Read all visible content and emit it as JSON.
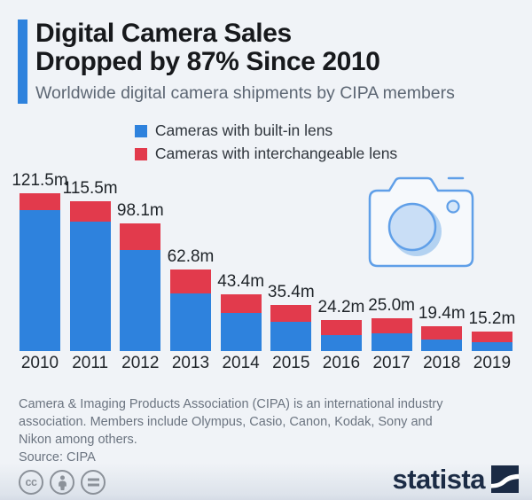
{
  "header": {
    "title_lines": [
      "Digital Camera Sales",
      "Dropped by 87% Since 2010"
    ],
    "subtitle": "Worldwide digital camera shipments by CIPA members",
    "accent_color": "#2e82dd"
  },
  "chart_data": {
    "type": "bar",
    "stacked": true,
    "title": "Digital Camera Sales Dropped by 87% Since 2010",
    "subtitle": "Worldwide digital camera shipments by CIPA members",
    "unit": "million units",
    "grid": false,
    "legend_position": "top-center",
    "ylim": [
      0,
      125
    ],
    "categories": [
      "2010",
      "2011",
      "2012",
      "2013",
      "2014",
      "2015",
      "2016",
      "2017",
      "2018",
      "2019"
    ],
    "totals": [
      121.5,
      115.5,
      98.1,
      62.8,
      43.4,
      35.4,
      24.2,
      25.0,
      19.4,
      15.2
    ],
    "total_labels": [
      "121.5m",
      "115.5m",
      "98.1m",
      "62.8m",
      "43.4m",
      "35.4m",
      "24.2m",
      "25.0m",
      "19.4m",
      "15.2m"
    ],
    "series": [
      {
        "name": "Cameras with built-in lens",
        "color": "#2e82dd",
        "values": [
          108.6,
          99.8,
          78.0,
          44.4,
          29.4,
          22.3,
          12.6,
          13.4,
          8.7,
          6.8
        ]
      },
      {
        "name": "Cameras with interchangeable lens",
        "color": "#e23a4c",
        "values": [
          12.9,
          15.7,
          20.1,
          18.4,
          14.0,
          13.1,
          11.6,
          11.6,
          10.7,
          8.4
        ]
      }
    ]
  },
  "footer": {
    "note": "Camera & Imaging Products Association (CIPA) is an international industry\nassociation. Members include Olympus, Casio, Canon, Kodak, Sony and\nNikon among others.",
    "source": "Source: CIPA"
  },
  "branding": {
    "logo_text": "statista",
    "cc_label": "cc",
    "logo_color": "#1b2b45"
  }
}
